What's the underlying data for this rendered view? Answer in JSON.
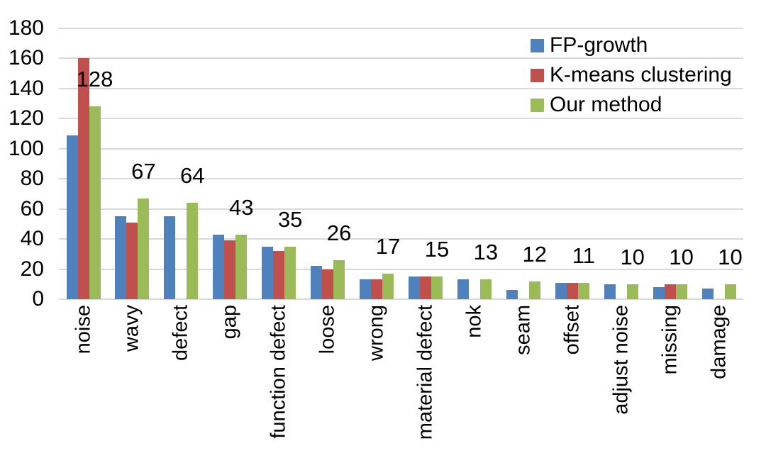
{
  "chart_data": {
    "type": "bar",
    "title": "",
    "xlabel": "",
    "ylabel": "",
    "ylim": [
      0,
      180
    ],
    "ytick_step": 20,
    "grid": true,
    "legend_position": "top-right",
    "categories": [
      "noise",
      "wavy",
      "defect",
      "gap",
      "function defect",
      "loose",
      "wrong",
      "material defect",
      "nok",
      "seam",
      "offset",
      "adjust noise",
      "missing",
      "damage"
    ],
    "series": [
      {
        "name": "FP-growth",
        "color": "#4F81BD",
        "values": [
          109,
          55,
          55,
          43,
          35,
          22,
          13,
          15,
          13,
          6,
          11,
          10,
          8,
          7
        ]
      },
      {
        "name": "K-means clustering",
        "color": "#C0504D",
        "values": [
          160,
          51,
          0,
          39,
          32,
          20,
          13,
          15,
          0,
          0,
          11,
          0,
          10,
          0
        ]
      },
      {
        "name": "Our method",
        "color": "#9BBB59",
        "values": [
          128,
          67,
          64,
          43,
          35,
          26,
          17,
          15,
          13,
          12,
          11,
          10,
          10,
          10
        ]
      }
    ],
    "data_labels": {
      "series": "Our method",
      "values": [
        "128",
        "67",
        "64",
        "43",
        "35",
        "26",
        "17",
        "15",
        "13",
        "12",
        "11",
        "10",
        "10",
        "10"
      ]
    },
    "yticks": [
      "0",
      "20",
      "40",
      "60",
      "80",
      "100",
      "120",
      "140",
      "160",
      "180"
    ]
  },
  "colors": {
    "background": "#FFFFFF",
    "gridline": "#D9D9D9",
    "text": "#000000"
  }
}
